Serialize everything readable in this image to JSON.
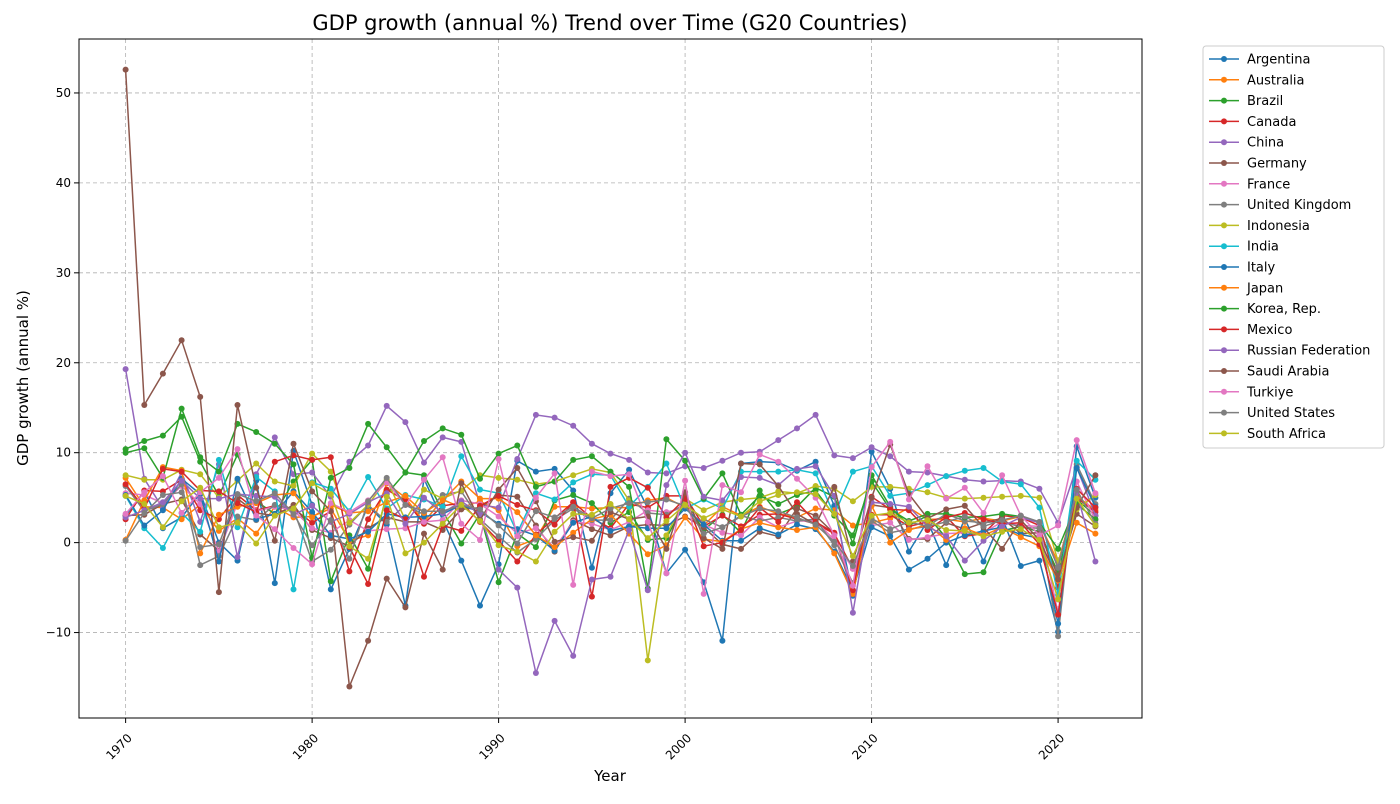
{
  "chart_data": {
    "type": "line",
    "title": "GDP growth (annual %) Trend over Time (G20 Countries)",
    "xlabel": "Year",
    "ylabel": "GDP growth (annual %)",
    "xlim": [
      1967.5,
      2024.5
    ],
    "ylim": [
      -19.5,
      56
    ],
    "x_ticks": [
      1970,
      1980,
      1990,
      2000,
      2010,
      2020
    ],
    "y_ticks": [
      -10,
      0,
      10,
      20,
      30,
      40,
      50
    ],
    "y_tick_labels": [
      "−10",
      "0",
      "10",
      "20",
      "30",
      "40",
      "50"
    ],
    "grid": true,
    "legend_position": "outside-right",
    "x": [
      1970,
      1971,
      1972,
      1973,
      1974,
      1975,
      1976,
      1977,
      1978,
      1979,
      1980,
      1981,
      1982,
      1983,
      1984,
      1985,
      1986,
      1987,
      1988,
      1989,
      1990,
      1991,
      1992,
      1993,
      1994,
      1995,
      1996,
      1997,
      1998,
      1999,
      2000,
      2001,
      2002,
      2003,
      2004,
      2005,
      2006,
      2007,
      2008,
      2009,
      2010,
      2011,
      2012,
      2013,
      2014,
      2015,
      2016,
      2017,
      2018,
      2019,
      2020,
      2021,
      2022
    ],
    "series": [
      {
        "name": "Argentina",
        "color": "#1f77b4",
        "values": [
          3.0,
          5.7,
          1.6,
          2.8,
          5.5,
          0.0,
          -2.0,
          6.9,
          -4.5,
          10.2,
          4.2,
          -5.2,
          -0.7,
          4.1,
          2.0,
          -7.0,
          7.1,
          2.5,
          -2.0,
          -7.0,
          -2.4,
          9.1,
          7.9,
          8.2,
          5.8,
          -2.8,
          5.5,
          8.1,
          3.8,
          -3.4,
          -0.8,
          -4.4,
          -10.9,
          8.8,
          9.0,
          8.9,
          8.0,
          9.0,
          4.1,
          -5.9,
          10.1,
          6.0,
          -1.0,
          2.4,
          -2.5,
          2.7,
          -2.1,
          2.8,
          -2.6,
          -2.0,
          -9.9,
          10.7,
          5.0
        ]
      },
      {
        "name": "Australia",
        "color": "#ff7f0e",
        "values": [
          7.2,
          4.0,
          3.9,
          2.6,
          4.2,
          1.3,
          2.7,
          1.0,
          4.0,
          2.8,
          2.9,
          3.8,
          0.2,
          0.8,
          6.6,
          5.0,
          2.3,
          4.8,
          3.9,
          4.6,
          3.6,
          -0.4,
          0.4,
          4.0,
          4.0,
          3.8,
          3.9,
          3.9,
          4.7,
          5.0,
          3.9,
          1.9,
          4.0,
          3.0,
          4.0,
          3.2,
          2.8,
          3.8,
          3.6,
          1.9,
          2.2,
          2.7,
          3.9,
          2.6,
          2.6,
          2.3,
          2.7,
          2.4,
          2.9,
          2.2,
          -2.2,
          5.2,
          3.6
        ]
      },
      {
        "name": "Brazil",
        "color": "#2ca02c",
        "values": [
          10.4,
          11.3,
          11.9,
          14.0,
          9.0,
          5.2,
          9.8,
          4.6,
          3.2,
          6.8,
          9.2,
          -4.3,
          0.8,
          -2.9,
          5.4,
          7.8,
          7.5,
          3.5,
          -0.1,
          3.2,
          -4.4,
          1.0,
          -0.5,
          4.7,
          5.3,
          4.4,
          2.2,
          3.4,
          0.3,
          0.5,
          4.4,
          1.4,
          3.1,
          1.1,
          5.8,
          3.2,
          4.0,
          6.1,
          5.1,
          -0.1,
          7.5,
          4.0,
          1.9,
          3.0,
          0.5,
          -3.5,
          -3.3,
          1.3,
          1.8,
          1.2,
          -3.3,
          4.8,
          3.0
        ]
      },
      {
        "name": "Canada",
        "color": "#d62728",
        "values": [
          2.6,
          5.8,
          5.7,
          7.0,
          3.6,
          2.6,
          5.3,
          3.6,
          4.1,
          3.8,
          2.2,
          3.5,
          -3.2,
          2.6,
          5.9,
          4.7,
          2.1,
          4.1,
          4.4,
          2.3,
          0.2,
          -2.1,
          0.9,
          2.7,
          4.5,
          2.7,
          1.6,
          4.3,
          3.9,
          5.2,
          5.2,
          1.8,
          3.0,
          1.8,
          3.1,
          3.2,
          2.6,
          2.1,
          1.0,
          -2.9,
          3.1,
          3.1,
          1.8,
          2.3,
          2.9,
          0.7,
          1.0,
          3.0,
          2.8,
          1.9,
          -5.0,
          5.0,
          3.4
        ]
      },
      {
        "name": "China",
        "color": "#9467bd",
        "values": [
          19.3,
          7.1,
          3.8,
          7.8,
          2.3,
          8.7,
          -1.6,
          7.6,
          11.7,
          7.6,
          7.8,
          5.1,
          9.0,
          10.8,
          15.2,
          13.4,
          8.9,
          11.7,
          11.2,
          4.2,
          3.9,
          9.3,
          14.2,
          13.9,
          13.0,
          11.0,
          9.9,
          9.2,
          7.8,
          7.7,
          8.5,
          8.3,
          9.1,
          10.0,
          10.1,
          11.4,
          12.7,
          14.2,
          9.7,
          9.4,
          10.6,
          9.6,
          7.9,
          7.8,
          7.4,
          7.0,
          6.8,
          6.9,
          6.8,
          6.0,
          2.2,
          8.4,
          3.0
        ]
      },
      {
        "name": "Germany",
        "color": "#8c564b",
        "values": [
          3.0,
          3.1,
          4.3,
          4.8,
          0.9,
          -0.9,
          4.9,
          3.3,
          3.0,
          4.2,
          1.4,
          0.5,
          -0.4,
          1.6,
          2.8,
          2.3,
          2.3,
          1.4,
          3.7,
          3.9,
          5.3,
          5.1,
          1.9,
          -1.0,
          2.5,
          1.5,
          0.8,
          1.8,
          2.0,
          1.9,
          2.9,
          1.7,
          -0.2,
          -0.7,
          1.2,
          0.7,
          3.8,
          3.0,
          1.0,
          -5.7,
          4.2,
          3.9,
          0.4,
          0.4,
          2.2,
          1.5,
          2.2,
          2.7,
          1.0,
          1.1,
          -3.7,
          3.2,
          1.8
        ]
      },
      {
        "name": "France",
        "color": "#e377c2",
        "values": [
          5.5,
          5.3,
          4.4,
          6.3,
          4.3,
          -1.0,
          4.4,
          3.5,
          4.0,
          3.6,
          1.6,
          1.1,
          2.5,
          1.3,
          1.5,
          1.6,
          2.3,
          2.5,
          4.7,
          4.3,
          2.9,
          1.0,
          1.6,
          -0.6,
          2.3,
          2.1,
          1.4,
          2.3,
          3.6,
          3.4,
          3.9,
          2.0,
          1.1,
          0.8,
          2.8,
          1.7,
          2.4,
          2.4,
          0.3,
          -2.9,
          1.9,
          2.2,
          0.3,
          0.6,
          1.0,
          1.1,
          1.1,
          2.3,
          1.9,
          1.8,
          -7.8,
          6.8,
          2.5
        ]
      },
      {
        "name": "United Kingdom",
        "color": "#7f7f7f",
        "values": [
          6.3,
          3.5,
          4.3,
          6.5,
          -2.5,
          -1.5,
          2.9,
          2.5,
          4.2,
          3.7,
          -2.1,
          -0.8,
          2.0,
          4.2,
          2.3,
          4.2,
          3.1,
          5.3,
          5.7,
          2.6,
          0.7,
          -1.1,
          0.4,
          2.5,
          3.8,
          2.5,
          2.5,
          4.9,
          3.3,
          3.1,
          4.3,
          2.6,
          1.7,
          3.0,
          2.4,
          2.8,
          2.4,
          2.6,
          -0.3,
          -4.5,
          2.4,
          1.1,
          1.5,
          1.8,
          3.2,
          2.4,
          2.2,
          2.4,
          1.7,
          1.6,
          -10.4,
          8.7,
          4.3
        ]
      },
      {
        "name": "Indonesia",
        "color": "#bcbd22",
        "values": [
          7.5,
          7.0,
          7.0,
          8.1,
          7.6,
          5.0,
          6.9,
          8.8,
          6.8,
          6.3,
          9.9,
          7.9,
          2.2,
          4.2,
          7.0,
          2.5,
          5.9,
          4.9,
          5.8,
          7.5,
          7.2,
          7.0,
          6.5,
          6.8,
          7.5,
          8.2,
          7.8,
          4.7,
          -13.1,
          0.8,
          4.9,
          3.6,
          4.5,
          4.8,
          5.0,
          5.7,
          5.5,
          6.3,
          6.0,
          4.6,
          6.2,
          6.2,
          6.0,
          5.6,
          5.0,
          4.9,
          5.0,
          5.1,
          5.2,
          5.0,
          -2.1,
          3.7,
          5.3
        ]
      },
      {
        "name": "India",
        "color": "#17becf",
        "values": [
          5.2,
          1.6,
          -0.6,
          3.3,
          1.2,
          9.2,
          1.7,
          7.3,
          5.7,
          -5.2,
          6.7,
          6.0,
          3.5,
          7.3,
          3.8,
          5.3,
          4.8,
          4.0,
          9.6,
          5.9,
          5.5,
          1.1,
          5.5,
          4.8,
          6.7,
          7.6,
          7.5,
          4.0,
          6.2,
          8.8,
          3.8,
          4.8,
          3.8,
          7.9,
          7.9,
          7.9,
          8.1,
          7.7,
          3.1,
          7.9,
          8.5,
          5.2,
          5.5,
          6.4,
          7.4,
          8.0,
          8.3,
          6.8,
          6.5,
          3.9,
          -5.8,
          9.1,
          7.0
        ]
      },
      {
        "name": "Italy",
        "color": "#1f77b4",
        "values": [
          5.3,
          1.9,
          3.6,
          7.1,
          5.4,
          -2.1,
          7.1,
          2.6,
          3.2,
          5.7,
          3.4,
          0.8,
          0.4,
          1.2,
          3.2,
          2.8,
          2.9,
          3.2,
          4.2,
          3.4,
          2.1,
          1.5,
          0.8,
          -0.9,
          2.2,
          2.9,
          1.3,
          1.8,
          1.6,
          1.6,
          3.8,
          2.0,
          0.2,
          0.2,
          1.6,
          0.9,
          2.0,
          1.5,
          -1.0,
          -5.3,
          1.7,
          0.7,
          -3.0,
          -1.8,
          0.0,
          0.8,
          1.3,
          1.7,
          0.9,
          0.5,
          -9.0,
          8.3,
          4.0
        ]
      },
      {
        "name": "Japan",
        "color": "#ff7f0e",
        "values": [
          0.3,
          4.7,
          8.4,
          8.0,
          -1.2,
          3.1,
          4.0,
          4.4,
          5.3,
          5.5,
          2.8,
          4.2,
          3.3,
          3.5,
          4.5,
          5.2,
          3.3,
          4.7,
          6.8,
          4.9,
          4.9,
          3.4,
          0.8,
          -0.5,
          1.1,
          2.6,
          3.1,
          1.0,
          -1.3,
          -0.3,
          2.8,
          0.4,
          0.1,
          1.5,
          2.2,
          1.7,
          1.4,
          1.7,
          -1.2,
          -5.7,
          4.1,
          0.0,
          1.4,
          2.0,
          0.3,
          1.6,
          0.8,
          1.7,
          0.6,
          -0.4,
          -4.2,
          2.2,
          1.0
        ]
      },
      {
        "name": "Korea, Rep.",
        "color": "#2ca02c",
        "values": [
          10.0,
          10.5,
          7.2,
          14.9,
          9.5,
          7.9,
          13.2,
          12.3,
          11.0,
          8.7,
          -1.7,
          7.2,
          8.3,
          13.2,
          10.6,
          7.8,
          11.3,
          12.7,
          12.0,
          7.1,
          9.9,
          10.8,
          6.2,
          6.8,
          9.2,
          9.6,
          7.9,
          6.2,
          -5.1,
          11.5,
          9.1,
          4.9,
          7.7,
          3.1,
          5.2,
          4.3,
          5.3,
          5.8,
          3.0,
          0.8,
          6.8,
          3.7,
          2.4,
          3.2,
          3.2,
          2.8,
          2.9,
          3.2,
          2.9,
          2.2,
          -0.7,
          4.3,
          2.6
        ]
      },
      {
        "name": "Mexico",
        "color": "#d62728",
        "values": [
          6.5,
          3.8,
          8.2,
          7.9,
          5.8,
          5.7,
          4.4,
          3.4,
          9.0,
          9.7,
          9.2,
          9.5,
          -0.5,
          -4.6,
          3.6,
          2.6,
          -3.8,
          1.9,
          1.3,
          4.1,
          5.2,
          4.2,
          3.6,
          2.0,
          4.5,
          -6.0,
          6.2,
          7.2,
          6.1,
          2.8,
          4.9,
          -0.4,
          0.0,
          1.4,
          3.9,
          2.3,
          4.5,
          2.3,
          1.1,
          -5.3,
          5.1,
          3.7,
          3.6,
          1.4,
          2.8,
          3.3,
          2.6,
          2.1,
          2.2,
          -0.2,
          -8.0,
          6.0,
          3.9
        ]
      },
      {
        "name": "Russian Federation",
        "color": "#9467bd",
        "values": [
          2.8,
          3.6,
          4.5,
          6.9,
          4.9,
          4.9,
          5.4,
          5.2,
          5.1,
          3.1,
          4.1,
          2.3,
          3.2,
          4.5,
          5.5,
          2.1,
          5.0,
          3.3,
          4.6,
          3.2,
          -3.0,
          -5.0,
          -14.5,
          -8.7,
          -12.6,
          -4.1,
          -3.8,
          1.4,
          -5.3,
          6.4,
          10.0,
          5.1,
          4.7,
          7.3,
          7.2,
          6.4,
          8.2,
          8.5,
          5.2,
          -7.8,
          4.5,
          4.3,
          4.0,
          1.8,
          0.7,
          -2.0,
          0.2,
          1.8,
          2.8,
          2.2,
          -2.7,
          5.6,
          -2.1
        ]
      },
      {
        "name": "Saudi Arabia",
        "color": "#8c564b",
        "values": [
          52.6,
          15.3,
          18.8,
          22.5,
          16.2,
          -5.5,
          15.3,
          6.1,
          0.2,
          11.0,
          5.7,
          3.5,
          -16.0,
          -10.9,
          -4.0,
          -7.2,
          1.0,
          -3.0,
          6.6,
          2.5,
          5.9,
          8.3,
          4.6,
          0.1,
          0.6,
          0.2,
          3.4,
          2.6,
          2.9,
          -0.7,
          5.6,
          0.5,
          -0.7,
          8.8,
          8.7,
          6.3,
          3.2,
          2.0,
          6.2,
          -2.1,
          5.0,
          10.9,
          5.4,
          2.7,
          3.7,
          4.1,
          1.7,
          -0.7,
          2.5,
          0.3,
          -4.1,
          3.9,
          7.5
        ]
      },
      {
        "name": "Turkiye",
        "color": "#e377c2",
        "values": [
          3.2,
          5.6,
          7.4,
          3.3,
          5.6,
          7.2,
          10.4,
          3.0,
          1.5,
          -0.6,
          -2.4,
          4.4,
          3.4,
          4.7,
          6.7,
          4.2,
          7.0,
          9.5,
          2.1,
          0.3,
          9.3,
          0.7,
          5.0,
          7.7,
          -4.7,
          7.9,
          7.4,
          7.6,
          2.3,
          -3.4,
          6.9,
          -5.7,
          6.4,
          5.6,
          9.8,
          9.0,
          7.1,
          5.0,
          0.8,
          -4.8,
          8.4,
          11.2,
          4.8,
          8.5,
          4.9,
          6.1,
          3.3,
          7.5,
          3.0,
          0.8,
          1.9,
          11.4,
          5.5
        ]
      },
      {
        "name": "United States",
        "color": "#7f7f7f",
        "values": [
          0.2,
          3.3,
          5.3,
          5.6,
          -0.5,
          -0.2,
          5.4,
          4.6,
          5.5,
          3.2,
          -0.3,
          2.5,
          -1.8,
          4.6,
          7.2,
          4.2,
          3.5,
          3.5,
          4.2,
          3.7,
          1.9,
          -0.1,
          3.5,
          2.8,
          4.0,
          2.7,
          3.8,
          4.4,
          4.5,
          4.8,
          4.1,
          1.0,
          1.7,
          2.9,
          3.8,
          3.5,
          2.8,
          2.0,
          0.1,
          -2.6,
          2.7,
          1.5,
          2.3,
          1.8,
          2.3,
          2.9,
          1.8,
          2.5,
          3.0,
          2.3,
          -2.8,
          5.9,
          2.1
        ]
      },
      {
        "name": "South Africa",
        "color": "#bcbd22",
        "values": [
          5.2,
          4.3,
          1.7,
          4.6,
          6.1,
          1.7,
          2.2,
          -0.1,
          3.0,
          3.8,
          6.6,
          5.4,
          -0.4,
          -1.8,
          5.1,
          -1.2,
          0.0,
          2.1,
          4.2,
          2.4,
          -0.3,
          -1.0,
          -2.1,
          1.2,
          3.2,
          3.1,
          4.3,
          2.6,
          0.5,
          2.4,
          4.2,
          2.7,
          3.7,
          2.9,
          4.6,
          5.3,
          5.6,
          5.4,
          3.2,
          -1.5,
          3.0,
          3.3,
          2.2,
          2.5,
          1.4,
          1.3,
          0.7,
          1.2,
          1.5,
          0.3,
          -6.3,
          4.9,
          1.9
        ]
      }
    ]
  }
}
